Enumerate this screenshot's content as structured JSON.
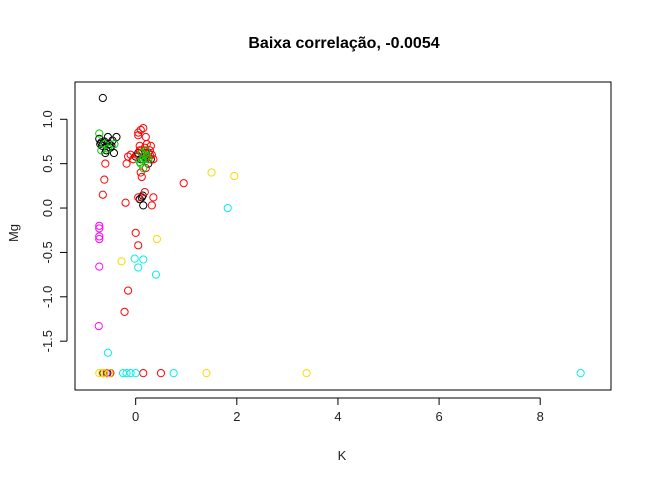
{
  "chart_data": {
    "type": "scatter",
    "title": "Baixa correlação, -0.0054",
    "xlabel": "K",
    "ylabel": "Mg",
    "xlim": [
      -1.2,
      9.4
    ],
    "ylim": [
      -2.05,
      1.42
    ],
    "xticks": [
      0,
      2,
      4,
      6,
      8
    ],
    "yticks": [
      -1.5,
      -1.0,
      -0.5,
      0.0,
      0.5,
      1.0
    ],
    "ytick_labels": [
      "-1.5",
      "-1.0",
      "-0.5",
      "0.0",
      "0.5",
      "1.0"
    ],
    "legend": "none",
    "grid": false,
    "series": [
      {
        "color": "#000000",
        "points": [
          [
            -0.65,
            1.24
          ],
          [
            -0.72,
            0.78
          ],
          [
            -0.7,
            0.72
          ],
          [
            -0.66,
            0.7
          ],
          [
            -0.62,
            0.75
          ],
          [
            -0.58,
            0.65
          ],
          [
            -0.55,
            0.8
          ],
          [
            -0.52,
            0.72
          ],
          [
            -0.5,
            0.68
          ],
          [
            -0.46,
            0.76
          ],
          [
            -0.43,
            0.62
          ],
          [
            -0.38,
            0.8
          ],
          [
            -0.6,
            0.62
          ],
          [
            -0.68,
            0.74
          ],
          [
            -0.48,
            0.7
          ],
          [
            0.05,
            0.62
          ],
          [
            0.1,
            0.55
          ],
          [
            0.18,
            0.58
          ],
          [
            0.25,
            0.5
          ],
          [
            0.3,
            0.55
          ],
          [
            0.12,
            0.12
          ],
          [
            0.08,
            0.1
          ],
          [
            0.15,
            0.03
          ],
          [
            0.14,
            0.14
          ],
          [
            0.0,
            0.58
          ],
          [
            0.2,
            0.62
          ],
          [
            -0.64,
            -1.86
          ],
          [
            -0.56,
            -1.86
          ]
        ]
      },
      {
        "color": "#ff0000",
        "points": [
          [
            0.05,
            0.85
          ],
          [
            0.1,
            0.88
          ],
          [
            0.15,
            0.9
          ],
          [
            0.2,
            0.8
          ],
          [
            0.08,
            0.7
          ],
          [
            0.12,
            0.65
          ],
          [
            0.18,
            0.6
          ],
          [
            0.22,
            0.72
          ],
          [
            0.28,
            0.65
          ],
          [
            0.32,
            0.6
          ],
          [
            0.35,
            0.55
          ],
          [
            0.25,
            0.55
          ],
          [
            0.02,
            0.6
          ],
          [
            -0.05,
            0.55
          ],
          [
            -0.1,
            0.6
          ],
          [
            -0.15,
            0.58
          ],
          [
            -0.18,
            0.5
          ],
          [
            0.3,
            0.7
          ],
          [
            0.15,
            0.55
          ],
          [
            0.2,
            0.45
          ],
          [
            0.1,
            0.4
          ],
          [
            0.12,
            0.35
          ],
          [
            0.18,
            0.18
          ],
          [
            0.05,
            0.12
          ],
          [
            0.35,
            0.12
          ],
          [
            0.32,
            0.03
          ],
          [
            -0.2,
            0.06
          ],
          [
            0.95,
            0.28
          ],
          [
            -0.6,
            0.5
          ],
          [
            -0.62,
            0.32
          ],
          [
            -0.65,
            0.15
          ],
          [
            0.0,
            -0.28
          ],
          [
            0.05,
            -0.42
          ],
          [
            -0.15,
            -0.93
          ],
          [
            -0.22,
            -1.17
          ],
          [
            -0.5,
            -1.86
          ],
          [
            0.15,
            -1.86
          ],
          [
            0.5,
            -1.86
          ],
          [
            0.08,
            0.65
          ],
          [
            0.25,
            0.62
          ],
          [
            0.22,
            0.58
          ],
          [
            0.18,
            0.68
          ],
          [
            0.28,
            0.6
          ],
          [
            0.05,
            0.82
          ]
        ]
      },
      {
        "color": "#00cc00",
        "points": [
          [
            -0.72,
            0.84
          ],
          [
            -0.62,
            0.72
          ],
          [
            -0.55,
            0.67
          ],
          [
            -0.42,
            0.72
          ],
          [
            -0.68,
            0.65
          ],
          [
            0.1,
            0.5
          ],
          [
            0.14,
            0.55
          ],
          [
            0.18,
            0.6
          ],
          [
            0.22,
            0.58
          ],
          [
            0.15,
            0.45
          ],
          [
            0.25,
            0.55
          ],
          [
            0.12,
            0.62
          ],
          [
            0.08,
            0.52
          ],
          [
            0.2,
            0.65
          ]
        ]
      },
      {
        "color": "#00eeee",
        "points": [
          [
            1.82,
            0.0
          ],
          [
            0.05,
            -0.67
          ],
          [
            0.15,
            -0.58
          ],
          [
            0.4,
            -0.75
          ],
          [
            -0.02,
            -0.57
          ],
          [
            -0.55,
            -1.63
          ],
          [
            -0.25,
            -1.86
          ],
          [
            -0.18,
            -1.86
          ],
          [
            -0.1,
            -1.86
          ],
          [
            0.0,
            -1.86
          ],
          [
            0.75,
            -1.86
          ],
          [
            8.8,
            -1.86
          ]
        ]
      },
      {
        "color": "#ff00ff",
        "points": [
          [
            -0.72,
            -0.2
          ],
          [
            -0.72,
            -0.23
          ],
          [
            -0.72,
            -0.32
          ],
          [
            -0.72,
            -0.35
          ],
          [
            -0.72,
            -0.66
          ],
          [
            -0.73,
            -1.33
          ],
          [
            -0.58,
            -1.86
          ]
        ]
      },
      {
        "color": "#ffd700",
        "points": [
          [
            1.5,
            0.4
          ],
          [
            1.95,
            0.36
          ],
          [
            0.42,
            -0.35
          ],
          [
            -0.28,
            -0.6
          ],
          [
            -0.72,
            -1.86
          ],
          [
            -0.66,
            -1.86
          ],
          [
            -0.62,
            -1.86
          ],
          [
            -0.52,
            -1.86
          ],
          [
            1.4,
            -1.86
          ],
          [
            3.38,
            -1.86
          ]
        ]
      }
    ]
  }
}
